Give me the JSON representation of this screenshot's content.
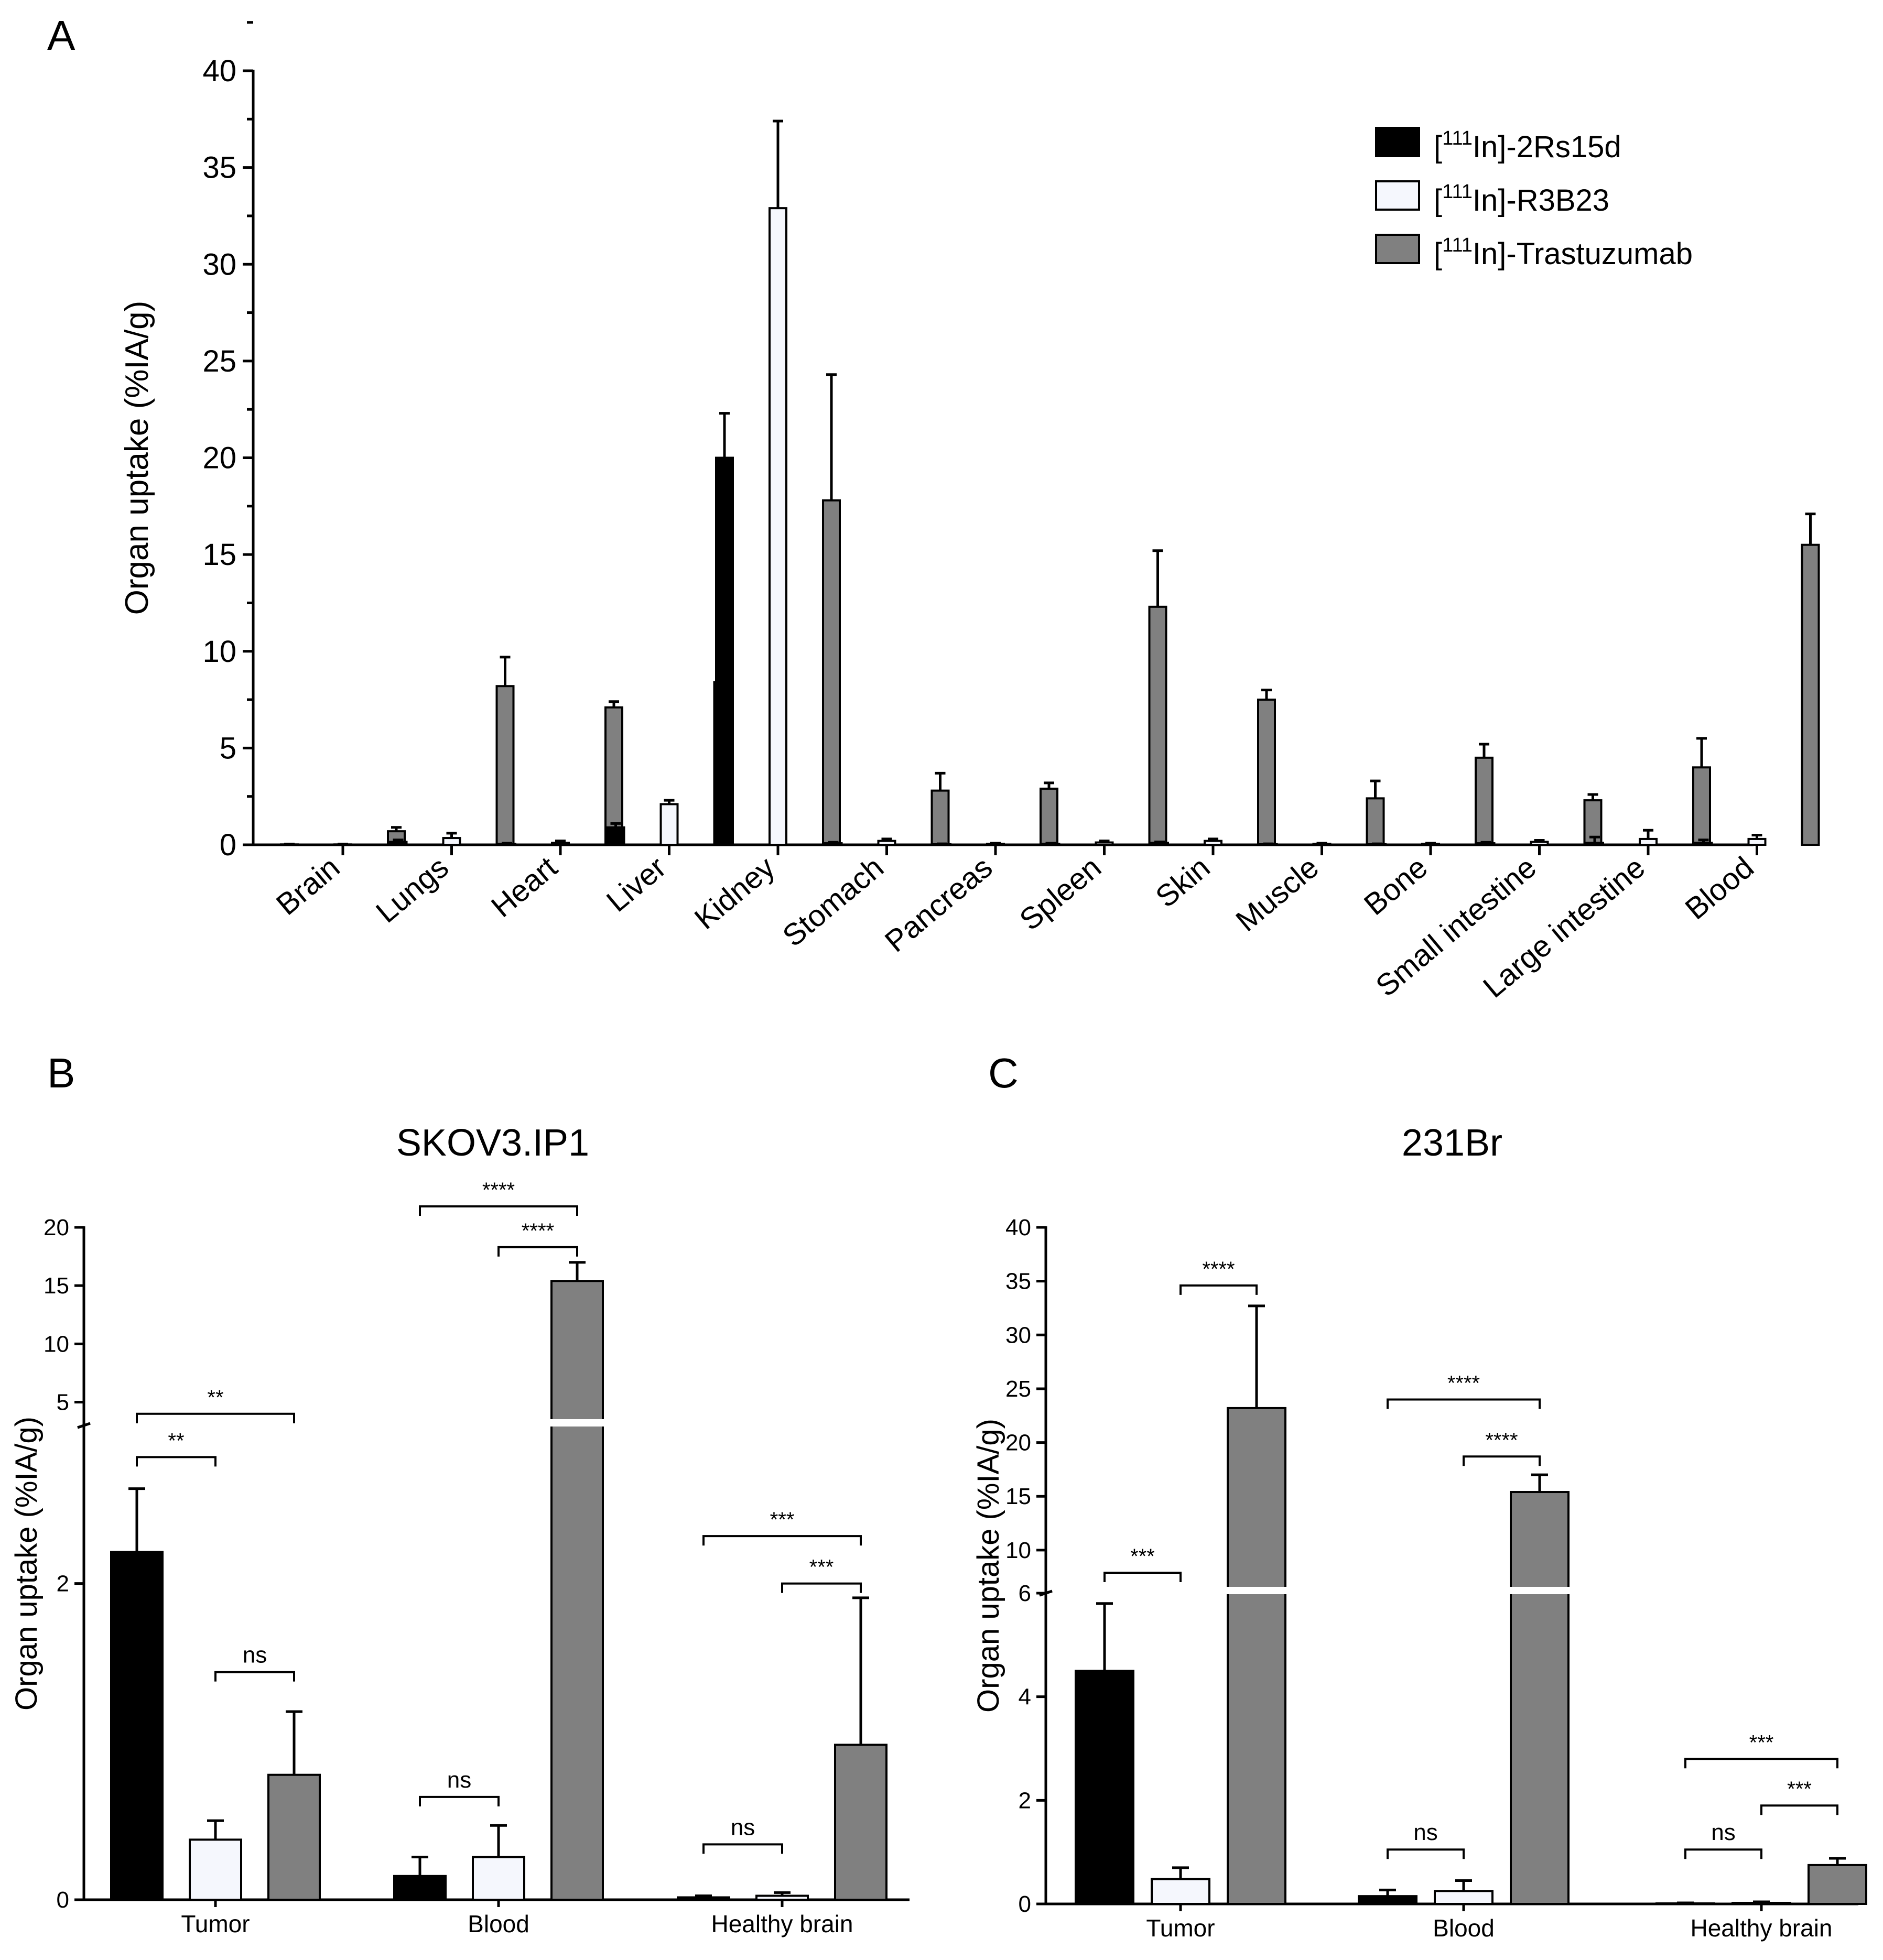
{
  "panel_labels": {
    "a": "A",
    "b": "B",
    "c": "C"
  },
  "legend": [
    {
      "pre": "[",
      "sup": "111",
      "post": "In]-2Rs15d"
    },
    {
      "pre": "[",
      "sup": "111",
      "post": "In]-R3B23"
    },
    {
      "pre": "[",
      "sup": "111",
      "post": "In]-Trastuzumab"
    }
  ],
  "colors": {
    "series0": "#000000",
    "series1": "#f5f7fd",
    "series2": "#808080"
  },
  "chart_data": [
    {
      "id": "A",
      "type": "bar",
      "title": "",
      "xlabel": "",
      "ylabel": "Organ uptake (%IA/g)",
      "ylim": [
        0,
        40
      ],
      "yticks": [
        0,
        5,
        10,
        15,
        20,
        25,
        30,
        35,
        40
      ],
      "ytick_labels": [
        "0",
        "5",
        "10",
        "15",
        "20",
        "25",
        "30",
        "35",
        "40"
      ],
      "categories": [
        "Brain",
        "Lungs",
        "Heart",
        "Liver",
        "Kidney",
        "Stomach",
        "Pancreas",
        "Spleen",
        "Skin",
        "Muscle",
        "Bone",
        "Small intestine",
        "Large intestine",
        "Blood"
      ],
      "series": [
        {
          "name": "[111In]-2Rs15d",
          "values": [
            0.02,
            0.15,
            0.05,
            0.9,
            20.0,
            0.08,
            0.03,
            0.05,
            0.1,
            0.03,
            0.03,
            0.08,
            0.1,
            0.1
          ],
          "errors": [
            0.02,
            0.1,
            0.03,
            0.2,
            2.3,
            0.05,
            0.02,
            0.03,
            0.05,
            0.02,
            0.02,
            0.05,
            0.3,
            0.15
          ]
        },
        {
          "name": "[111In]-R3B23",
          "values": [
            0.02,
            0.35,
            0.1,
            2.1,
            32.9,
            0.2,
            0.05,
            0.12,
            0.2,
            0.05,
            0.05,
            0.15,
            0.3,
            0.3
          ],
          "errors": [
            0.02,
            0.25,
            0.1,
            0.2,
            4.5,
            0.1,
            0.03,
            0.08,
            0.1,
            0.03,
            0.03,
            0.08,
            0.45,
            0.2
          ]
        },
        {
          "name": "[111In]-Trastuzumab",
          "values": [
            0.7,
            8.2,
            7.1,
            8.4,
            17.8,
            2.8,
            2.9,
            12.3,
            7.5,
            2.4,
            4.5,
            2.3,
            4.0,
            15.5
          ],
          "errors": [
            0.2,
            1.5,
            0.3,
            1.3,
            6.5,
            0.9,
            0.3,
            2.9,
            0.5,
            0.9,
            0.7,
            0.3,
            1.5,
            1.6
          ]
        }
      ]
    },
    {
      "id": "B",
      "type": "bar",
      "title": "SKOV3.IP1",
      "xlabel": "",
      "ylabel": "Organ uptake (%IA/g)",
      "ylim_lower": [
        0,
        3
      ],
      "ylim_upper": [
        3,
        20
      ],
      "yticks_lower": [
        0,
        2
      ],
      "ytick_labels_lower": [
        "0",
        "2"
      ],
      "yticks_upper": [
        5,
        10,
        15,
        20
      ],
      "ytick_labels_upper": [
        "5",
        "10",
        "15",
        "20"
      ],
      "categories": [
        "Tumor",
        "Blood",
        "Healthy brain"
      ],
      "series": [
        {
          "name": "[111In]-2Rs15d",
          "values": [
            2.2,
            0.15,
            0.015
          ],
          "errors": [
            0.4,
            0.12,
            0.01
          ]
        },
        {
          "name": "[111In]-R3B23",
          "values": [
            0.38,
            0.27,
            0.025
          ],
          "errors": [
            0.12,
            0.2,
            0.02
          ]
        },
        {
          "name": "[111In]-Trastuzumab",
          "values": [
            0.79,
            15.4,
            0.98
          ],
          "errors": [
            0.4,
            1.6,
            0.93
          ]
        }
      ],
      "annotations": [
        {
          "label": "**",
          "group": 0,
          "from": 0,
          "to": 1,
          "y": 2.8
        },
        {
          "label": "**",
          "group": 0,
          "from": 0,
          "to": 2,
          "y": 4.0
        },
        {
          "label": "ns",
          "group": 0,
          "from": 1,
          "to": 2,
          "y": 1.44
        },
        {
          "label": "****",
          "group": 1,
          "from": 1,
          "to": 2,
          "y": 18.3
        },
        {
          "label": "****",
          "group": 1,
          "from": 0,
          "to": 2,
          "y": 21.8
        },
        {
          "label": "ns",
          "group": 1,
          "from": 0,
          "to": 1,
          "y": 0.65
        },
        {
          "label": "***",
          "group": 2,
          "from": 0,
          "to": 2,
          "y": 2.3
        },
        {
          "label": "***",
          "group": 2,
          "from": 1,
          "to": 2,
          "y": 2.0
        },
        {
          "label": "ns",
          "group": 2,
          "from": 0,
          "to": 1,
          "y": 0.35
        }
      ]
    },
    {
      "id": "C",
      "type": "bar",
      "title": "231Br",
      "xlabel": "",
      "ylabel": "Organ uptake (%IA/g)",
      "ylim_lower": [
        0,
        6
      ],
      "ylim_upper": [
        6,
        40
      ],
      "yticks_lower": [
        0,
        2,
        4,
        6
      ],
      "ytick_labels_lower": [
        "0",
        "2",
        "4",
        "6"
      ],
      "yticks_upper": [
        10,
        15,
        20,
        25,
        30,
        35,
        40
      ],
      "ytick_labels_upper": [
        "10",
        "15",
        "20",
        "25",
        "30",
        "35",
        "40"
      ],
      "categories": [
        "Tumor",
        "Blood",
        "Healthy brain"
      ],
      "series": [
        {
          "name": "[111In]-2Rs15d",
          "values": [
            4.5,
            0.15,
            0.01
          ],
          "errors": [
            1.3,
            0.12,
            0.01
          ]
        },
        {
          "name": "[111In]-R3B23",
          "values": [
            0.48,
            0.25,
            0.02
          ],
          "errors": [
            0.22,
            0.2,
            0.02
          ]
        },
        {
          "name": "[111In]-Trastuzumab",
          "values": [
            23.2,
            15.4,
            0.75
          ],
          "errors": [
            9.5,
            1.6,
            0.13
          ]
        }
      ],
      "annotations": [
        {
          "label": "***",
          "group": 0,
          "from": 0,
          "to": 1,
          "y": 7.9
        },
        {
          "label": "****",
          "group": 0,
          "from": 1,
          "to": 2,
          "y": 34.6
        },
        {
          "label": "****",
          "group": 1,
          "from": 0,
          "to": 2,
          "y": 24.0
        },
        {
          "label": "****",
          "group": 1,
          "from": 1,
          "to": 2,
          "y": 18.7
        },
        {
          "label": "ns",
          "group": 1,
          "from": 0,
          "to": 1,
          "y": 1.05
        },
        {
          "label": "***",
          "group": 2,
          "from": 0,
          "to": 2,
          "y": 2.8
        },
        {
          "label": "***",
          "group": 2,
          "from": 1,
          "to": 2,
          "y": 1.9
        },
        {
          "label": "ns",
          "group": 2,
          "from": 0,
          "to": 1,
          "y": 1.05
        }
      ]
    }
  ]
}
